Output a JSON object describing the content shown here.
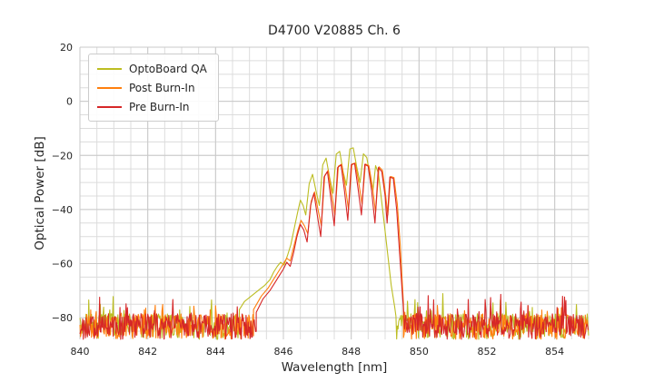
{
  "chart_data": {
    "type": "line",
    "title": "D4700 V20885 Ch. 6",
    "xlabel": "Wavelength [nm]",
    "ylabel": "Optical Power [dB]",
    "xlim": [
      840,
      855
    ],
    "ylim": [
      -88,
      20
    ],
    "xticks": [
      840,
      842,
      844,
      846,
      848,
      850,
      852,
      854
    ],
    "yticks": [
      20,
      0,
      -20,
      -40,
      -60,
      -80
    ],
    "ytick_labels": [
      "20",
      "0",
      "−20",
      "−40",
      "−60",
      "−80"
    ],
    "x_minor_step": 0.5,
    "y_minor_step": 5,
    "grid": true,
    "grid_minor_color": "#dcdcdc",
    "grid_major_color": "#c9c9c9",
    "legend_position": "upper left",
    "line_width": 1.1,
    "noise_floor": {
      "mean_db": -81,
      "min_db": -88,
      "max_db": -71
    },
    "series": [
      {
        "name": "OptoBoard QA",
        "color": "#bcbd22",
        "seed": 7,
        "noise_until": 844.7,
        "noise_from": 849.32,
        "envelope": [
          [
            844.7,
            -77
          ],
          [
            844.85,
            -74
          ],
          [
            845.0,
            -72.5
          ],
          [
            845.15,
            -71
          ],
          [
            845.3,
            -69.5
          ],
          [
            845.45,
            -68
          ],
          [
            845.6,
            -66
          ],
          [
            845.72,
            -63
          ],
          [
            845.82,
            -61
          ],
          [
            845.92,
            -59.5
          ],
          [
            846.02,
            -60.5
          ],
          [
            846.12,
            -57
          ],
          [
            846.22,
            -53
          ],
          [
            846.32,
            -47
          ],
          [
            846.42,
            -41
          ],
          [
            846.5,
            -36.5
          ],
          [
            846.58,
            -38.5
          ],
          [
            846.66,
            -42
          ],
          [
            846.76,
            -30.5
          ],
          [
            846.86,
            -27
          ],
          [
            846.96,
            -33
          ],
          [
            847.06,
            -38.5
          ],
          [
            847.16,
            -23.5
          ],
          [
            847.26,
            -21
          ],
          [
            847.36,
            -28
          ],
          [
            847.46,
            -34
          ],
          [
            847.56,
            -19.5
          ],
          [
            847.66,
            -18.5
          ],
          [
            847.76,
            -26
          ],
          [
            847.86,
            -31
          ],
          [
            847.96,
            -17.6
          ],
          [
            848.06,
            -17.2
          ],
          [
            848.16,
            -24
          ],
          [
            848.26,
            -30
          ],
          [
            848.36,
            -19.4
          ],
          [
            848.46,
            -20.8
          ],
          [
            848.56,
            -28
          ],
          [
            848.64,
            -33
          ],
          [
            848.72,
            -23.8
          ],
          [
            848.8,
            -26.5
          ],
          [
            848.88,
            -35
          ],
          [
            848.98,
            -46
          ],
          [
            849.08,
            -57
          ],
          [
            849.18,
            -68
          ],
          [
            849.28,
            -76
          ]
        ]
      },
      {
        "name": "Post Burn-In",
        "color": "#ff7f0e",
        "seed": 13,
        "noise_until": 845.12,
        "noise_from": 849.54,
        "envelope": [
          [
            845.12,
            -77
          ],
          [
            845.35,
            -72
          ],
          [
            845.55,
            -69
          ],
          [
            845.7,
            -66
          ],
          [
            845.85,
            -63
          ],
          [
            846.0,
            -60
          ],
          [
            846.1,
            -58
          ],
          [
            846.2,
            -59
          ],
          [
            846.3,
            -54
          ],
          [
            846.42,
            -48
          ],
          [
            846.52,
            -44
          ],
          [
            846.62,
            -46
          ],
          [
            846.72,
            -49
          ],
          [
            846.82,
            -37
          ],
          [
            846.92,
            -33.5
          ],
          [
            847.02,
            -40
          ],
          [
            847.12,
            -46
          ],
          [
            847.22,
            -27.5
          ],
          [
            847.32,
            -25.5
          ],
          [
            847.42,
            -34
          ],
          [
            847.52,
            -42
          ],
          [
            847.62,
            -24
          ],
          [
            847.72,
            -23.2
          ],
          [
            847.82,
            -31
          ],
          [
            847.92,
            -40
          ],
          [
            848.02,
            -23.2
          ],
          [
            848.12,
            -22.8
          ],
          [
            848.22,
            -30
          ],
          [
            848.32,
            -38
          ],
          [
            848.42,
            -23.2
          ],
          [
            848.52,
            -23.8
          ],
          [
            848.62,
            -31
          ],
          [
            848.72,
            -41
          ],
          [
            848.82,
            -24.2
          ],
          [
            848.92,
            -25.5
          ],
          [
            849.0,
            -33
          ],
          [
            849.08,
            -42
          ],
          [
            849.16,
            -27.8
          ],
          [
            849.26,
            -28.2
          ],
          [
            849.36,
            -38
          ],
          [
            849.44,
            -52
          ],
          [
            849.5,
            -66
          ],
          [
            849.54,
            -75
          ]
        ]
      },
      {
        "name": "Pre Burn-In",
        "color": "#d62728",
        "seed": 29,
        "noise_until": 845.2,
        "noise_from": 849.55,
        "envelope": [
          [
            845.2,
            -78
          ],
          [
            845.4,
            -73
          ],
          [
            845.6,
            -70
          ],
          [
            845.75,
            -67
          ],
          [
            845.9,
            -64
          ],
          [
            846.0,
            -62
          ],
          [
            846.1,
            -59.5
          ],
          [
            846.2,
            -61
          ],
          [
            846.3,
            -56
          ],
          [
            846.4,
            -50
          ],
          [
            846.5,
            -45.5
          ],
          [
            846.6,
            -47.5
          ],
          [
            846.7,
            -52
          ],
          [
            846.8,
            -38.5
          ],
          [
            846.9,
            -34
          ],
          [
            847.0,
            -42
          ],
          [
            847.1,
            -50
          ],
          [
            847.2,
            -28
          ],
          [
            847.3,
            -26
          ],
          [
            847.4,
            -36
          ],
          [
            847.5,
            -46
          ],
          [
            847.6,
            -24.5
          ],
          [
            847.7,
            -23.5
          ],
          [
            847.8,
            -33
          ],
          [
            847.9,
            -44
          ],
          [
            848.0,
            -23.5
          ],
          [
            848.1,
            -23
          ],
          [
            848.2,
            -32
          ],
          [
            848.3,
            -42
          ],
          [
            848.4,
            -23.3
          ],
          [
            848.5,
            -24
          ],
          [
            848.6,
            -33
          ],
          [
            848.7,
            -45
          ],
          [
            848.8,
            -24.5
          ],
          [
            848.9,
            -26
          ],
          [
            849.0,
            -35
          ],
          [
            849.06,
            -45
          ],
          [
            849.14,
            -28
          ],
          [
            849.24,
            -28.5
          ],
          [
            849.34,
            -40
          ],
          [
            849.42,
            -55
          ],
          [
            849.5,
            -70
          ],
          [
            849.55,
            -78
          ]
        ]
      }
    ]
  }
}
